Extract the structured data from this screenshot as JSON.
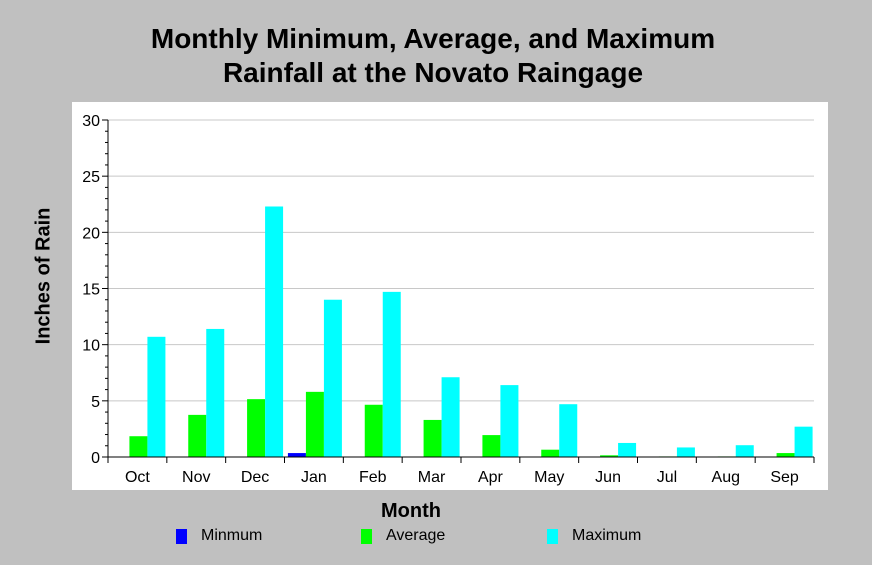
{
  "chart_data": {
    "type": "bar",
    "title": [
      "Monthly Minimum, Average, and Maximum",
      "Rainfall at the Novato Raingage"
    ],
    "xlabel": "Month",
    "ylabel": "Inches of Rain",
    "ylim": [
      0,
      30
    ],
    "yticks": [
      0,
      5,
      10,
      15,
      20,
      25,
      30
    ],
    "grid": true,
    "legend_position": "bottom",
    "categories": [
      "Oct",
      "Nov",
      "Dec",
      "Jan",
      "Feb",
      "Mar",
      "Apr",
      "May",
      "Jun",
      "Jul",
      "Aug",
      "Sep"
    ],
    "series": [
      {
        "name": "Minmum",
        "color": "#0000ff",
        "values": [
          0,
          0,
          0,
          0.35,
          0,
          0,
          0,
          0,
          0,
          0,
          0,
          0
        ]
      },
      {
        "name": "Average",
        "color": "#00ff00",
        "values": [
          1.85,
          3.75,
          5.15,
          5.8,
          4.65,
          3.3,
          1.95,
          0.65,
          0.15,
          0.05,
          0.05,
          0.35
        ]
      },
      {
        "name": "Maximum",
        "color": "#00ffff",
        "values": [
          10.7,
          11.4,
          22.3,
          14.0,
          14.7,
          7.1,
          6.4,
          4.7,
          1.25,
          0.85,
          1.05,
          2.7
        ]
      }
    ]
  }
}
